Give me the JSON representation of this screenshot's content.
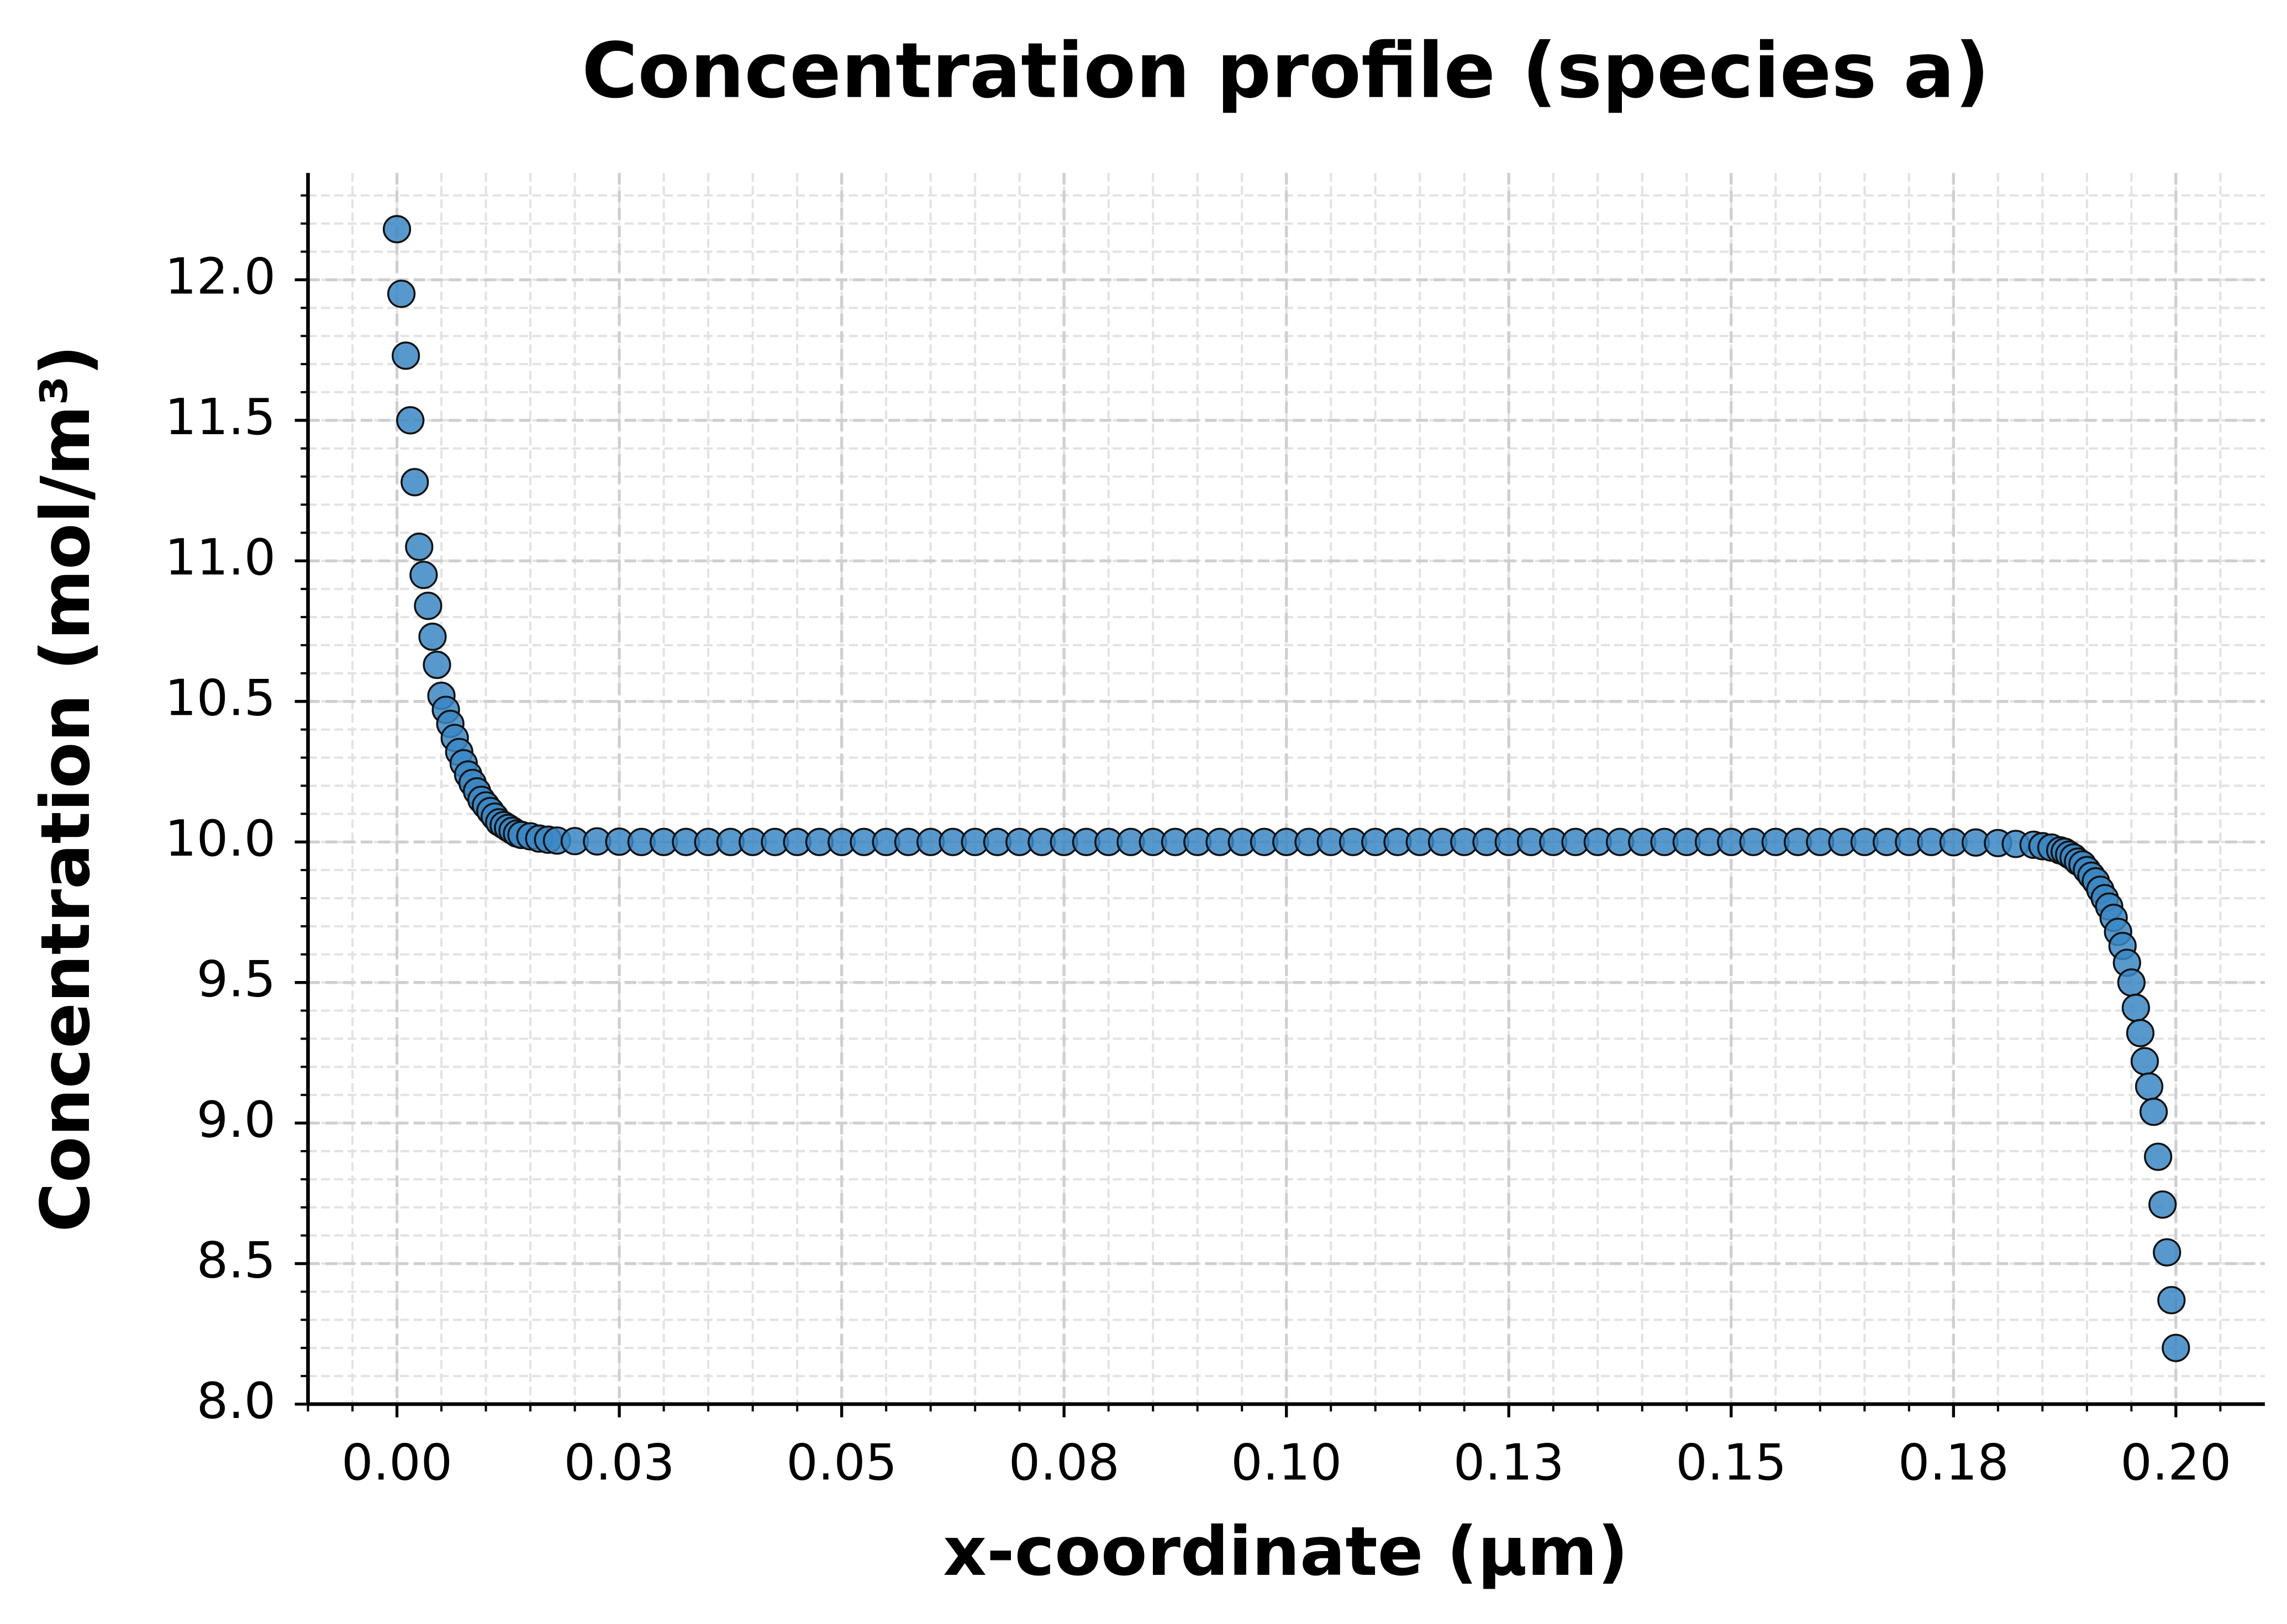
{
  "chart_data": {
    "type": "scatter",
    "title": "Concentration profile (species a)",
    "x_label": "x-coordinate (μm)",
    "y_label": "Concentration (mol/m³)",
    "color": "#3a87c4",
    "grid": true,
    "minor_grid": true,
    "xlim": [
      -0.01,
      0.21
    ],
    "ylim": [
      8.0,
      12.38
    ],
    "xticks": [
      {
        "value": 0,
        "label": "0.00"
      },
      {
        "value": 0.025,
        "label": "0.03"
      },
      {
        "value": 0.05,
        "label": "0.05"
      },
      {
        "value": 0.075,
        "label": "0.08"
      },
      {
        "value": 0.1,
        "label": "0.10"
      },
      {
        "value": 0.125,
        "label": "0.13"
      },
      {
        "value": 0.15,
        "label": "0.15"
      },
      {
        "value": 0.175,
        "label": "0.18"
      },
      {
        "value": 0.2,
        "label": "0.20"
      }
    ],
    "yticks": [
      {
        "value": 8,
        "label": "8.0"
      },
      8.5,
      {
        "value": 9,
        "label": "9.0"
      },
      9.5,
      {
        "value": 10,
        "label": "10.0"
      },
      10.5,
      {
        "value": 11,
        "label": "11.0"
      },
      11.5,
      {
        "value": 12,
        "label": "12.0"
      }
    ],
    "x": [
      0,
      0.0005,
      0.001,
      0.0015,
      0.002,
      0.0025,
      0.003,
      0.0035,
      0.004,
      0.0045,
      0.005,
      0.0055,
      0.006,
      0.0065,
      0.007,
      0.0075,
      0.008,
      0.0085,
      0.009,
      0.0095,
      0.01,
      0.0105,
      0.011,
      0.0115,
      0.012,
      0.0125,
      0.013,
      0.0135,
      0.014,
      0.015,
      0.016,
      0.017,
      0.018,
      0.02,
      0.0225,
      0.025,
      0.0275,
      0.03,
      0.0325,
      0.035,
      0.0375,
      0.04,
      0.0425,
      0.045,
      0.0475,
      0.05,
      0.0525,
      0.055,
      0.0575,
      0.06,
      0.0625,
      0.065,
      0.0675,
      0.07,
      0.0725,
      0.075,
      0.0775,
      0.08,
      0.0825,
      0.085,
      0.0875,
      0.09,
      0.0925,
      0.095,
      0.0975,
      0.1,
      0.1025,
      0.105,
      0.1075,
      0.11,
      0.1125,
      0.115,
      0.1175,
      0.12,
      0.1225,
      0.125,
      0.1275,
      0.13,
      0.1325,
      0.135,
      0.1375,
      0.14,
      0.1425,
      0.145,
      0.1475,
      0.15,
      0.1525,
      0.155,
      0.1575,
      0.16,
      0.1625,
      0.165,
      0.1675,
      0.17,
      0.1725,
      0.175,
      0.1775,
      0.18,
      0.182,
      0.184,
      0.185,
      0.186,
      0.187,
      0.1875,
      0.188,
      0.1885,
      0.189,
      0.1895,
      0.19,
      0.1905,
      0.191,
      0.1915,
      0.192,
      0.1925,
      0.193,
      0.1935,
      0.194,
      0.1945,
      0.195,
      0.1955,
      0.196,
      0.1965,
      0.197,
      0.1975,
      0.198,
      0.1985,
      0.199,
      0.1995,
      0.2
    ],
    "values": [
      12.18,
      11.95,
      11.73,
      11.5,
      11.28,
      11.05,
      10.95,
      10.84,
      10.73,
      10.63,
      10.52,
      10.47,
      10.42,
      10.37,
      10.32,
      10.28,
      10.24,
      10.21,
      10.18,
      10.15,
      10.13,
      10.11,
      10.09,
      10.07,
      10.06,
      10.05,
      10.04,
      10.03,
      10.025,
      10.02,
      10.012,
      10.008,
      10.005,
      10.003,
      10.002,
      10.001,
      10,
      10,
      10,
      10,
      10,
      10,
      10,
      10,
      10,
      10,
      10,
      10,
      10,
      10,
      10,
      10,
      10,
      10,
      10,
      10,
      10,
      10,
      10,
      10,
      10,
      10,
      10,
      10,
      10,
      10,
      10,
      10,
      10,
      10,
      10,
      10,
      10,
      10,
      10,
      10,
      10,
      10,
      10,
      10,
      10,
      10,
      10,
      10,
      10,
      10,
      10,
      10,
      10,
      10,
      10,
      10,
      10,
      10,
      10,
      9.999,
      9.998,
      9.996,
      9.993,
      9.99,
      9.985,
      9.98,
      9.97,
      9.965,
      9.955,
      9.945,
      9.93,
      9.92,
      9.9,
      9.88,
      9.86,
      9.83,
      9.8,
      9.77,
      9.73,
      9.68,
      9.63,
      9.57,
      9.5,
      9.41,
      9.32,
      9.22,
      9.13,
      9.04,
      8.88,
      8.71,
      8.54,
      8.37,
      8.2
    ]
  }
}
